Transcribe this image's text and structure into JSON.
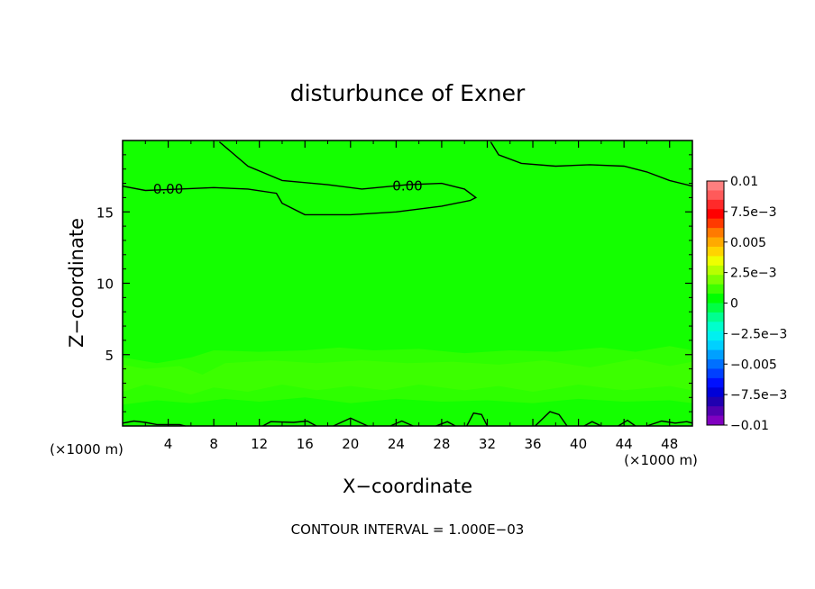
{
  "chart_data": {
    "type": "contour",
    "title": "disturbunce of Exner",
    "xlabel": "X−coordinate",
    "ylabel": "Z−coordinate",
    "x_unit_left": "(×1000 m)",
    "x_unit_right": "(×1000 m)",
    "xlim": [
      0,
      50
    ],
    "ylim": [
      0,
      20
    ],
    "x_ticks": [
      4,
      8,
      12,
      16,
      20,
      24,
      28,
      32,
      36,
      40,
      44,
      48
    ],
    "x_tick_labels": [
      "4",
      "8",
      "12",
      "16",
      "20",
      "24",
      "28",
      "32",
      "36",
      "40",
      "44",
      "48"
    ],
    "y_ticks": [
      5,
      10,
      15
    ],
    "y_tick_labels": [
      "5",
      "10",
      "15"
    ],
    "contour_labels": [
      {
        "text": "0.00",
        "x": 4,
        "y": 16.6
      },
      {
        "text": "0.00",
        "x": 25,
        "y": 16.8
      }
    ],
    "zero_contours": [
      {
        "points": [
          [
            0,
            16.8
          ],
          [
            2,
            16.5
          ],
          [
            5,
            16.6
          ],
          [
            8,
            16.7
          ],
          [
            11,
            16.6
          ],
          [
            13.5,
            16.3
          ],
          [
            14,
            15.6
          ],
          [
            16,
            14.8
          ],
          [
            20,
            14.8
          ],
          [
            24,
            15.0
          ],
          [
            28,
            15.4
          ],
          [
            30.5,
            15.8
          ],
          [
            31,
            16.0
          ],
          [
            30,
            16.6
          ],
          [
            28,
            17.0
          ],
          [
            25,
            16.9
          ],
          [
            21,
            16.6
          ],
          [
            18,
            16.9
          ],
          [
            14,
            17.2
          ],
          [
            11,
            18.2
          ],
          [
            8.5,
            19.9
          ]
        ]
      },
      {
        "points": [
          [
            32.3,
            19.9
          ],
          [
            33,
            19.0
          ],
          [
            35,
            18.4
          ],
          [
            38,
            18.2
          ],
          [
            41,
            18.3
          ],
          [
            44,
            18.2
          ],
          [
            46,
            17.8
          ],
          [
            48,
            17.2
          ],
          [
            50,
            16.8
          ]
        ]
      },
      {
        "points": [
          [
            0,
            0.2
          ],
          [
            1,
            0.35
          ],
          [
            2,
            0.25
          ],
          [
            3,
            0.1
          ],
          [
            5,
            0.1
          ],
          [
            5.5,
            0
          ]
        ]
      },
      {
        "points": [
          [
            12.3,
            0
          ],
          [
            13,
            0.3
          ],
          [
            15,
            0.25
          ],
          [
            16.2,
            0.35
          ],
          [
            17,
            0
          ]
        ]
      },
      {
        "points": [
          [
            18.5,
            0
          ],
          [
            20,
            0.55
          ],
          [
            21.5,
            0
          ]
        ]
      },
      {
        "points": [
          [
            23.5,
            0
          ],
          [
            24.5,
            0.35
          ],
          [
            25.5,
            0
          ]
        ]
      },
      {
        "points": [
          [
            27.5,
            0
          ],
          [
            28.5,
            0.3
          ],
          [
            29.2,
            0
          ]
        ]
      },
      {
        "points": [
          [
            30.2,
            0
          ],
          [
            30.8,
            0.9
          ],
          [
            31.5,
            0.8
          ],
          [
            32,
            0
          ]
        ]
      },
      {
        "points": [
          [
            36.2,
            0
          ],
          [
            37.5,
            1.0
          ],
          [
            38.3,
            0.8
          ],
          [
            39,
            0
          ]
        ]
      },
      {
        "points": [
          [
            40.5,
            0
          ],
          [
            41.2,
            0.3
          ],
          [
            42,
            0
          ]
        ]
      },
      {
        "points": [
          [
            43.5,
            0
          ],
          [
            44.3,
            0.4
          ],
          [
            45,
            0
          ]
        ]
      },
      {
        "points": [
          [
            46,
            0
          ],
          [
            47.3,
            0.35
          ],
          [
            48.5,
            0.2
          ],
          [
            49.5,
            0.3
          ],
          [
            50,
            0.2
          ]
        ]
      }
    ],
    "bands": [
      {
        "ranges": [
          [
            0,
            4.8
          ],
          [
            3,
            4.4
          ],
          [
            6,
            4.8
          ],
          [
            8,
            5.3
          ],
          [
            12,
            5.2
          ],
          [
            16,
            5.3
          ],
          [
            19,
            5.5
          ],
          [
            22,
            5.3
          ],
          [
            26,
            5.4
          ],
          [
            30,
            5.1
          ],
          [
            34,
            5.3
          ],
          [
            38,
            5.2
          ],
          [
            42,
            5.5
          ],
          [
            45,
            5.2
          ],
          [
            48,
            5.6
          ],
          [
            50,
            5.3
          ]
        ],
        "bottom": [
          [
            0,
            1.5
          ],
          [
            3,
            1.8
          ],
          [
            6,
            1.6
          ],
          [
            9,
            1.9
          ],
          [
            12,
            1.7
          ],
          [
            16,
            2.0
          ],
          [
            20,
            1.6
          ],
          [
            24,
            1.9
          ],
          [
            28,
            1.7
          ],
          [
            32,
            1.8
          ],
          [
            36,
            1.6
          ],
          [
            40,
            1.9
          ],
          [
            44,
            1.7
          ],
          [
            48,
            1.8
          ],
          [
            50,
            1.6
          ]
        ],
        "color": "#2eff00"
      },
      {
        "ranges": [
          [
            0,
            4.3
          ],
          [
            2,
            4.0
          ],
          [
            5,
            4.2
          ],
          [
            7,
            3.6
          ],
          [
            9,
            4.4
          ],
          [
            13,
            4.6
          ],
          [
            17,
            4.4
          ],
          [
            21,
            4.6
          ],
          [
            25,
            4.4
          ],
          [
            29,
            4.5
          ],
          [
            33,
            4.3
          ],
          [
            37,
            4.6
          ],
          [
            41,
            4.1
          ],
          [
            45,
            4.7
          ],
          [
            48,
            4.2
          ],
          [
            50,
            4.5
          ]
        ],
        "bottom": [
          [
            0,
            2.4
          ],
          [
            2,
            2.9
          ],
          [
            4,
            2.6
          ],
          [
            6,
            2.2
          ],
          [
            8,
            2.7
          ],
          [
            11,
            2.4
          ],
          [
            14,
            2.9
          ],
          [
            17,
            2.5
          ],
          [
            20,
            2.8
          ],
          [
            23,
            2.5
          ],
          [
            26,
            2.9
          ],
          [
            30,
            2.5
          ],
          [
            33,
            2.8
          ],
          [
            36,
            2.4
          ],
          [
            40,
            2.9
          ],
          [
            44,
            2.5
          ],
          [
            48,
            2.8
          ],
          [
            50,
            2.5
          ]
        ],
        "color": "#3cff00"
      }
    ],
    "colorbar": {
      "tick_labels": [
        "0.01",
        "7.5e−3",
        "0.005",
        "2.5e−3",
        "0",
        "−2.5e−3",
        "−0.005",
        "−7.5e−3",
        "−0.01"
      ],
      "colors_top_to_bottom": [
        "#ff7f7f",
        "#ff5a5a",
        "#ff2a2a",
        "#ff0000",
        "#ff3a00",
        "#ff7a00",
        "#ffaa00",
        "#ffd400",
        "#eeff00",
        "#b8ff00",
        "#7cff00",
        "#3eff00",
        "#00ff00",
        "#00ff44",
        "#00ff90",
        "#00ffcc",
        "#00f0f0",
        "#00d0ff",
        "#00a0ff",
        "#0070ff",
        "#0040ff",
        "#0010ff",
        "#0000d8",
        "#2000b0",
        "#5000b0",
        "#8000c0"
      ]
    },
    "field_color": "#14ff00",
    "caption": "CONTOUR INTERVAL = 1.000E−03"
  }
}
